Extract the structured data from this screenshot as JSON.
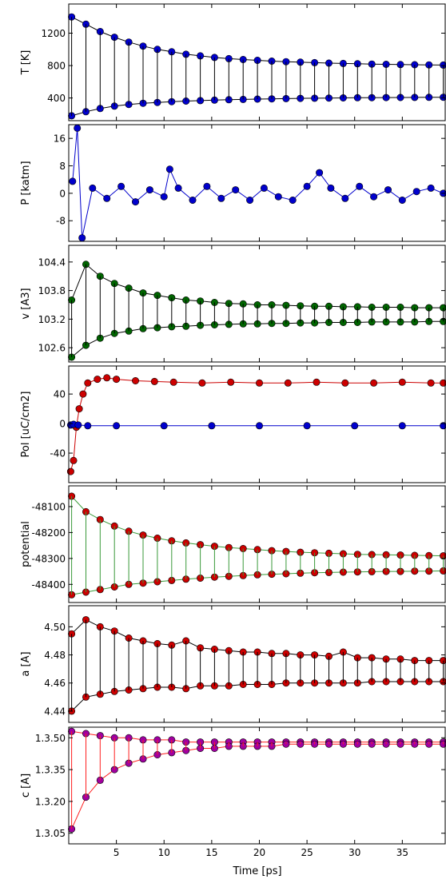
{
  "chart_data": {
    "type": "line",
    "xlabel": "Time [ps]",
    "xlim": [
      0,
      39.5
    ],
    "xticks": [
      5,
      10,
      15,
      20,
      25,
      30,
      35
    ],
    "xtick_labels": [
      "5",
      "10",
      "15",
      "20",
      "25",
      "30",
      "35"
    ],
    "grid": false,
    "panels": [
      {
        "ylabel": "T [K]",
        "ylim": [
          120,
          1560
        ],
        "yticks": [
          400,
          800,
          1200
        ],
        "ytick_labels": [
          "400",
          "800",
          "1200"
        ],
        "marker_color": "#0000cc",
        "stem_color": "#000000",
        "series": [
          {
            "x": [
              0.3,
              1.8,
              3.3,
              4.8,
              6.3,
              7.8,
              9.3,
              10.8,
              12.3,
              13.8,
              15.3,
              16.8,
              18.3,
              19.8,
              21.3,
              22.8,
              24.3,
              25.8,
              27.3,
              28.8,
              30.3,
              31.8,
              33.3,
              34.8,
              36.3,
              37.8,
              39.3
            ],
            "y": [
              1400,
              1310,
              1220,
              1150,
              1090,
              1040,
              1000,
              970,
              940,
              920,
              900,
              885,
              875,
              865,
              855,
              848,
              842,
              836,
              830,
              826,
              822,
              818,
              815,
              812,
              810,
              808,
              806
            ]
          },
          {
            "x": [
              0.3,
              1.8,
              3.3,
              4.8,
              6.3,
              7.8,
              9.3,
              10.8,
              12.3,
              13.8,
              15.3,
              16.8,
              18.3,
              19.8,
              21.3,
              22.8,
              24.3,
              25.8,
              27.3,
              28.8,
              30.3,
              31.8,
              33.3,
              34.8,
              36.3,
              37.8,
              39.3
            ],
            "y": [
              180,
              230,
              270,
              300,
              320,
              335,
              345,
              355,
              362,
              368,
              373,
              378,
              382,
              386,
              389,
              392,
              395,
              397,
              399,
              401,
              403,
              404,
              405,
              406,
              407,
              408,
              409
            ]
          }
        ]
      },
      {
        "ylabel": "P [katm]",
        "ylim": [
          -14,
          20
        ],
        "yticks": [
          -8,
          0,
          8,
          16
        ],
        "ytick_labels": [
          "-8",
          "0",
          "8",
          "16"
        ],
        "marker_color": "#0000cc",
        "stem_color": "#0000cc",
        "series": [
          {
            "x": [
              0.4,
              0.9,
              1.4,
              2.5,
              4,
              5.5,
              7,
              8.5,
              10,
              10.6,
              11.5,
              13,
              14.5,
              16,
              17.5,
              19,
              20.5,
              22,
              23.5,
              25,
              26.3,
              27.5,
              29,
              30.5,
              32,
              33.5,
              35,
              36.5,
              38,
              39.3
            ],
            "y": [
              3.5,
              19,
              -13,
              1.5,
              -1.5,
              2,
              -2.5,
              1,
              -1,
              7,
              1.5,
              -2,
              2,
              -1.5,
              1,
              -2,
              1.5,
              -1,
              -2,
              2,
              6,
              1.5,
              -1.5,
              2,
              -1,
              1,
              -2,
              0.5,
              1.5,
              0
            ]
          }
        ]
      },
      {
        "ylabel": "v [A3]",
        "ylim": [
          102.3,
          104.75
        ],
        "yticks": [
          102.6,
          103.2,
          103.8,
          104.4
        ],
        "ytick_labels": [
          "102.6",
          "103.2",
          "103.8",
          "104.4"
        ],
        "marker_color": "#006400",
        "stem_color": "#000000",
        "series": [
          {
            "x": [
              0.3,
              1.8,
              3.3,
              4.8,
              6.3,
              7.8,
              9.3,
              10.8,
              12.3,
              13.8,
              15.3,
              16.8,
              18.3,
              19.8,
              21.3,
              22.8,
              24.3,
              25.8,
              27.3,
              28.8,
              30.3,
              31.8,
              33.3,
              34.8,
              36.3,
              37.8,
              39.3
            ],
            "y": [
              103.6,
              104.35,
              104.1,
              103.95,
              103.85,
              103.75,
              103.7,
              103.65,
              103.6,
              103.58,
              103.55,
              103.53,
              103.52,
              103.5,
              103.5,
              103.49,
              103.48,
              103.47,
              103.47,
              103.46,
              103.46,
              103.45,
              103.45,
              103.45,
              103.44,
              103.44,
              103.44
            ]
          },
          {
            "x": [
              0.3,
              1.8,
              3.3,
              4.8,
              6.3,
              7.8,
              9.3,
              10.8,
              12.3,
              13.8,
              15.3,
              16.8,
              18.3,
              19.8,
              21.3,
              22.8,
              24.3,
              25.8,
              27.3,
              28.8,
              30.3,
              31.8,
              33.3,
              34.8,
              36.3,
              37.8,
              39.3
            ],
            "y": [
              102.4,
              102.65,
              102.8,
              102.9,
              102.95,
              103.0,
              103.02,
              103.04,
              103.05,
              103.07,
              103.08,
              103.09,
              103.1,
              103.1,
              103.11,
              103.11,
              103.12,
              103.12,
              103.13,
              103.13,
              103.13,
              103.14,
              103.14,
              103.14,
              103.14,
              103.15,
              103.15
            ]
          }
        ]
      },
      {
        "ylabel": "Pol [uC/cm2]",
        "ylim": [
          -80,
          78
        ],
        "yticks": [
          -40,
          0,
          40
        ],
        "ytick_labels": [
          "-40",
          "0",
          "40"
        ],
        "series": [
          {
            "name": "",
            "color": "#cc0000",
            "x": [
              0.2,
              0.5,
              0.8,
              1.1,
              1.5,
              2,
              3,
              4,
              5,
              7,
              9,
              11,
              14,
              17,
              20,
              23,
              26,
              29,
              32,
              35,
              38,
              39.3
            ],
            "y": [
              -65,
              -50,
              -5,
              20,
              40,
              55,
              60,
              62,
              60,
              58,
              57,
              56,
              55,
              56,
              55,
              55,
              56,
              55,
              55,
              56,
              55,
              55
            ]
          },
          {
            "name": "",
            "color": "#0000cc",
            "x": [
              0.2,
              0.5,
              1,
              2,
              5,
              10,
              15,
              20,
              25,
              30,
              35,
              39.3
            ],
            "y": [
              -2,
              -1,
              -2,
              -3,
              -3,
              -3,
              -3,
              -3,
              -3,
              -3,
              -3,
              -3
            ]
          }
        ]
      },
      {
        "ylabel": "potential",
        "ylim": [
          -48470,
          -48020
        ],
        "yticks": [
          -48400,
          -48300,
          -48200,
          -48100
        ],
        "ytick_labels": [
          "-48400",
          "-48300",
          "-48200",
          "-48100"
        ],
        "marker_color": "#cc0000",
        "stem_color": "#3a9a3a",
        "series": [
          {
            "x": [
              0.3,
              1.8,
              3.3,
              4.8,
              6.3,
              7.8,
              9.3,
              10.8,
              12.3,
              13.8,
              15.3,
              16.8,
              18.3,
              19.8,
              21.3,
              22.8,
              24.3,
              25.8,
              27.3,
              28.8,
              30.3,
              31.8,
              33.3,
              34.8,
              36.3,
              37.8,
              39.3
            ],
            "y": [
              -48060,
              -48120,
              -48150,
              -48175,
              -48195,
              -48210,
              -48222,
              -48232,
              -48240,
              -48247,
              -48253,
              -48258,
              -48262,
              -48266,
              -48270,
              -48273,
              -48276,
              -48278,
              -48280,
              -48282,
              -48284,
              -48285,
              -48286,
              -48287,
              -48288,
              -48289,
              -48290
            ]
          },
          {
            "x": [
              0.3,
              1.8,
              3.3,
              4.8,
              6.3,
              7.8,
              9.3,
              10.8,
              12.3,
              13.8,
              15.3,
              16.8,
              18.3,
              19.8,
              21.3,
              22.8,
              24.3,
              25.8,
              27.3,
              28.8,
              30.3,
              31.8,
              33.3,
              34.8,
              36.3,
              37.8,
              39.3
            ],
            "y": [
              -48440,
              -48430,
              -48420,
              -48410,
              -48400,
              -48395,
              -48390,
              -48385,
              -48380,
              -48376,
              -48372,
              -48369,
              -48366,
              -48363,
              -48361,
              -48359,
              -48357,
              -48355,
              -48354,
              -48353,
              -48352,
              -48351,
              -48350,
              -48350,
              -48349,
              -48349,
              -48348
            ]
          }
        ]
      },
      {
        "ylabel": "a [A]",
        "ylim": [
          4.432,
          4.515
        ],
        "yticks": [
          4.44,
          4.46,
          4.48,
          4.5
        ],
        "ytick_labels": [
          "4.44",
          "4.46",
          "4.48",
          "4.50"
        ],
        "marker_color": "#cc0000",
        "stem_color": "#000000",
        "series": [
          {
            "x": [
              0.3,
              1.8,
              3.3,
              4.8,
              6.3,
              7.8,
              9.3,
              10.8,
              12.3,
              13.8,
              15.3,
              16.8,
              18.3,
              19.8,
              21.3,
              22.8,
              24.3,
              25.8,
              27.3,
              28.8,
              30.3,
              31.8,
              33.3,
              34.8,
              36.3,
              37.8,
              39.3
            ],
            "y": [
              4.495,
              4.505,
              4.5,
              4.497,
              4.492,
              4.49,
              4.488,
              4.487,
              4.49,
              4.485,
              4.484,
              4.483,
              4.482,
              4.482,
              4.481,
              4.481,
              4.48,
              4.48,
              4.479,
              4.482,
              4.478,
              4.478,
              4.477,
              4.477,
              4.476,
              4.476,
              4.476
            ]
          },
          {
            "x": [
              0.3,
              1.8,
              3.3,
              4.8,
              6.3,
              7.8,
              9.3,
              10.8,
              12.3,
              13.8,
              15.3,
              16.8,
              18.3,
              19.8,
              21.3,
              22.8,
              24.3,
              25.8,
              27.3,
              28.8,
              30.3,
              31.8,
              33.3,
              34.8,
              36.3,
              37.8,
              39.3
            ],
            "y": [
              4.44,
              4.45,
              4.452,
              4.454,
              4.455,
              4.456,
              4.457,
              4.457,
              4.456,
              4.458,
              4.458,
              4.458,
              4.459,
              4.459,
              4.459,
              4.46,
              4.46,
              4.46,
              4.46,
              4.46,
              4.46,
              4.461,
              4.461,
              4.461,
              4.461,
              4.461,
              4.461
            ]
          }
        ]
      },
      {
        "ylabel": "c [A]",
        "ylim": [
          13.0,
          13.55
        ],
        "yticks": [
          13.05,
          13.2,
          13.35,
          13.5
        ],
        "ytick_labels": [
          "1.3.05",
          "1.3.20",
          "1.3.35",
          "1.3.50"
        ],
        "marker_color": "#a000a0",
        "stem_color": "#ff2020",
        "series": [
          {
            "x": [
              0.3,
              1.8,
              3.3,
              4.8,
              6.3,
              7.8,
              9.3,
              10.8,
              12.3,
              13.8,
              15.3,
              16.8,
              18.3,
              19.8,
              21.3,
              22.8,
              24.3,
              25.8,
              27.3,
              28.8,
              30.3,
              31.8,
              33.3,
              34.8,
              36.3,
              37.8,
              39.3
            ],
            "y": [
              13.53,
              13.52,
              13.51,
              13.5,
              13.5,
              13.49,
              13.49,
              13.49,
              13.48,
              13.48,
              13.48,
              13.48,
              13.48,
              13.48,
              13.48,
              13.48,
              13.48,
              13.48,
              13.48,
              13.48,
              13.48,
              13.48,
              13.48,
              13.48,
              13.48,
              13.48,
              13.48
            ]
          },
          {
            "x": [
              0.3,
              1.8,
              3.3,
              4.8,
              6.3,
              7.8,
              9.3,
              10.8,
              12.3,
              13.8,
              15.3,
              16.8,
              18.3,
              19.8,
              21.3,
              22.8,
              24.3,
              25.8,
              27.3,
              28.8,
              30.3,
              31.8,
              33.3,
              34.8,
              36.3,
              37.8,
              39.3
            ],
            "y": [
              13.07,
              13.22,
              13.3,
              13.35,
              13.38,
              13.4,
              13.42,
              13.43,
              13.44,
              13.45,
              13.45,
              13.46,
              13.46,
              13.46,
              13.46,
              13.47,
              13.47,
              13.47,
              13.47,
              13.47,
              13.47,
              13.47,
              13.47,
              13.47,
              13.47,
              13.47,
              13.47
            ]
          }
        ]
      }
    ]
  }
}
